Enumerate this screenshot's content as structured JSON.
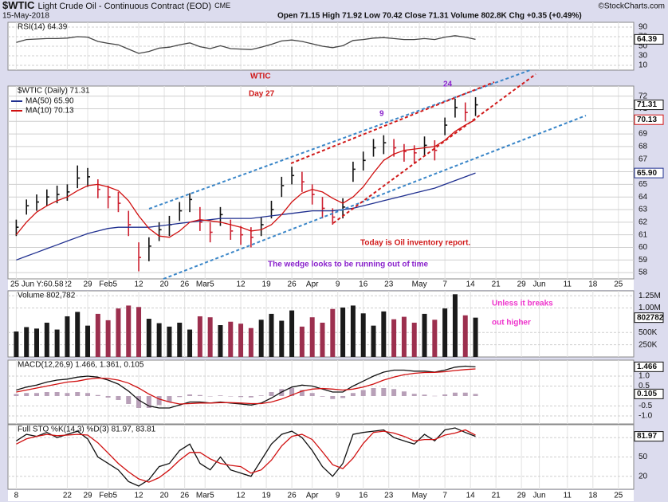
{
  "header": {
    "symbol": "$WTIC",
    "name": "Light Crude Oil - Continuous Contract (EOD)",
    "exchange": "CME",
    "date": "15-May-2018",
    "quote": "Open 71.15 High 71.92 Low 70.42 Close 71.31 Volume 802.8K Chg +0.35 (+0.49%)",
    "credit": "©StockCharts.com",
    "scroll_note": "25 Jun Y:60.58"
  },
  "annotations": {
    "wtic": "WTIC",
    "day": "Day 27",
    "count9": "9",
    "count24": "24",
    "report": "Today is Oil inventory report.",
    "wedge": "The wedge looks to be running out of time",
    "breaks1": "Unless it breaks",
    "breaks2": "out higher"
  },
  "chart_data": [
    {
      "type": "line",
      "title": "RSI(14) 64.39",
      "ylim": [
        0,
        100
      ],
      "yticks": [
        90,
        70,
        50,
        30,
        10
      ],
      "grid": true,
      "series": [
        {
          "name": "RSI(14)",
          "color": "#444444",
          "last_value_box": true,
          "values": [
            58,
            64,
            65,
            66,
            66,
            67,
            70,
            69,
            60,
            56,
            53,
            44,
            35,
            39,
            46,
            48,
            53,
            57,
            49,
            45,
            51,
            45,
            44,
            43,
            48,
            54,
            61,
            63,
            60,
            55,
            50,
            47,
            51,
            62,
            64,
            67,
            68,
            66,
            64,
            64,
            66,
            64,
            69,
            72,
            69,
            64.39
          ]
        }
      ]
    },
    {
      "type": "ohlc",
      "title": "$WTIC (Daily) 71.31",
      "ylim": [
        57.5,
        72.8
      ],
      "yticks": [
        58,
        59,
        60,
        61,
        62,
        63,
        64,
        65,
        66,
        67,
        68,
        69,
        70,
        71,
        72
      ],
      "grid": true,
      "xlim": [
        0,
        122
      ],
      "xticks": [
        {
          "value": 1,
          "label": "8"
        },
        {
          "value": 11,
          "label": "22"
        },
        {
          "value": 15,
          "label": "29"
        },
        {
          "value": 19,
          "label": "Feb5"
        },
        {
          "value": 25,
          "label": "12"
        },
        {
          "value": 30,
          "label": "20"
        },
        {
          "value": 34,
          "label": "26"
        },
        {
          "value": 38,
          "label": "Mar5"
        },
        {
          "value": 45,
          "label": "12"
        },
        {
          "value": 50,
          "label": "19"
        },
        {
          "value": 55,
          "label": "26"
        },
        {
          "value": 59,
          "label": "Apr"
        },
        {
          "value": 64,
          "label": "9"
        },
        {
          "value": 69,
          "label": "16"
        },
        {
          "value": 74,
          "label": "23"
        },
        {
          "value": 80,
          "label": "May"
        },
        {
          "value": 85,
          "label": "7"
        },
        {
          "value": 90,
          "label": "14"
        },
        {
          "value": 95,
          "label": "21"
        },
        {
          "value": 100,
          "label": "29"
        },
        {
          "value": 103.5,
          "label": "Jun"
        },
        {
          "value": 109,
          "label": "11"
        },
        {
          "value": 114,
          "label": "18"
        },
        {
          "value": 119,
          "label": "25"
        }
      ],
      "up_color": "#111111",
      "down_color": "#cc1f2f",
      "last_value_box": true,
      "high": [
        62.2,
        63.8,
        64.2,
        64.6,
        64.9,
        65.0,
        66.5,
        66.3,
        65.4,
        64.9,
        64.4,
        62.9,
        60.4,
        60.8,
        62.0,
        62.5,
        63.6,
        64.3,
        63.2,
        62.0,
        63.2,
        62.2,
        61.7,
        61.6,
        62.4,
        63.7,
        65.6,
        66.4,
        66.0,
        65.0,
        64.0,
        63.1,
        63.9,
        66.8,
        67.6,
        68.6,
        68.9,
        68.6,
        68.2,
        68.1,
        68.8,
        68.5,
        70.3,
        71.8,
        71.5,
        71.92
      ],
      "low": [
        60.9,
        62.6,
        62.9,
        63.3,
        63.5,
        63.7,
        64.7,
        64.8,
        63.9,
        63.1,
        62.8,
        60.9,
        58.1,
        58.9,
        60.5,
        60.9,
        62.1,
        62.8,
        61.3,
        60.4,
        61.7,
        60.6,
        60.2,
        60.0,
        60.9,
        62.3,
        64.0,
        65.0,
        64.4,
        63.4,
        62.3,
        61.8,
        62.3,
        65.2,
        66.1,
        67.2,
        67.4,
        67.2,
        66.8,
        66.7,
        67.3,
        66.9,
        68.9,
        70.3,
        70.0,
        70.42
      ],
      "close": [
        61.6,
        63.3,
        63.6,
        64.0,
        64.2,
        64.4,
        65.5,
        65.6,
        64.6,
        64.0,
        63.5,
        61.8,
        59.2,
        60.1,
        61.4,
        61.8,
        62.9,
        63.8,
        62.0,
        61.2,
        62.6,
        61.3,
        61.0,
        60.8,
        61.8,
        63.0,
        64.9,
        65.7,
        65.2,
        64.2,
        63.1,
        62.4,
        63.2,
        66.2,
        66.9,
        67.9,
        68.3,
        67.9,
        67.6,
        67.5,
        68.1,
        67.7,
        69.7,
        71.1,
        70.7,
        71.31
      ],
      "series": [
        {
          "name": "MA(50) 65.90",
          "color": "#1f2f8f",
          "last_value_box": true,
          "values": [
            59.0,
            59.3,
            59.6,
            59.9,
            60.2,
            60.5,
            60.8,
            61.1,
            61.3,
            61.5,
            61.6,
            61.6,
            61.6,
            61.6,
            61.7,
            61.8,
            61.9,
            62.0,
            62.1,
            62.2,
            62.3,
            62.3,
            62.3,
            62.3,
            62.4,
            62.5,
            62.6,
            62.7,
            62.8,
            62.9,
            62.9,
            62.9,
            63.0,
            63.1,
            63.3,
            63.5,
            63.7,
            63.9,
            64.1,
            64.3,
            64.5,
            64.7,
            65.0,
            65.3,
            65.6,
            65.9
          ],
          "value_labels": [
            null,
            null,
            null,
            null,
            null,
            null,
            null,
            null,
            null,
            null,
            null,
            null,
            null,
            null,
            null,
            null,
            null,
            null,
            null,
            null,
            null,
            null,
            null,
            null,
            null,
            null,
            null,
            null,
            null,
            null,
            null,
            null,
            null,
            null,
            null,
            null,
            null,
            null,
            null,
            null,
            null,
            null,
            null,
            null,
            null,
            "65.90"
          ]
        },
        {
          "name": "MA(10) 70.13",
          "color": "#d01010",
          "last_value_box": true,
          "values": [
            61.0,
            62.0,
            62.8,
            63.3,
            63.7,
            64.0,
            64.5,
            64.9,
            65.0,
            64.8,
            64.5,
            63.7,
            62.5,
            61.5,
            60.9,
            60.8,
            61.3,
            62.0,
            62.2,
            62.1,
            62.0,
            61.8,
            61.6,
            61.3,
            61.4,
            61.8,
            62.6,
            63.6,
            64.3,
            64.6,
            64.4,
            63.9,
            63.5,
            64.0,
            64.8,
            65.9,
            66.9,
            67.4,
            67.7,
            67.8,
            67.9,
            68.0,
            68.5,
            69.2,
            69.7,
            70.13
          ]
        }
      ]
    },
    {
      "type": "bar",
      "title": "Volume 802,782",
      "ylim": [
        0,
        1350000
      ],
      "yticks": [
        {
          "value": 1250000,
          "label": "1.25M"
        },
        {
          "value": 1000000,
          "label": "1.00M"
        },
        {
          "value": 500000,
          "label": "500K"
        },
        {
          "value": 250000,
          "label": "250K"
        }
      ],
      "grid": true,
      "last_value_box": true,
      "values": [
        520000,
        610000,
        580000,
        700000,
        560000,
        830000,
        920000,
        640000,
        880000,
        750000,
        990000,
        1050000,
        1020000,
        780000,
        690000,
        620000,
        700000,
        560000,
        830000,
        810000,
        650000,
        720000,
        680000,
        590000,
        760000,
        880000,
        740000,
        950000,
        620000,
        810000,
        700000,
        980000,
        1010000,
        1050000,
        890000,
        640000,
        930000,
        770000,
        820000,
        700000,
        880000,
        760000,
        990000,
        1280000,
        850000,
        802782
      ]
    },
    {
      "type": "line",
      "title": "MACD(12,26,9) 1.466, 1.361, 0.105",
      "ylim": [
        -1.4,
        1.8
      ],
      "yticks": [
        {
          "value": 1,
          "label": "1.0"
        },
        {
          "value": 0.5,
          "label": "0.5"
        },
        {
          "value": -0.5,
          "label": "-0.5"
        },
        {
          "value": -1,
          "label": "-1.0"
        }
      ],
      "grid": true,
      "series": [
        {
          "name": "Histogram",
          "style": "bar",
          "color": "#b8a0b8",
          "last_value_box": true,
          "values": [
            0.1,
            0.15,
            0.15,
            0.2,
            0.2,
            0.15,
            0.2,
            0.15,
            0.05,
            -0.08,
            -0.2,
            -0.4,
            -0.6,
            -0.6,
            -0.45,
            -0.3,
            -0.05,
            0.08,
            0.05,
            0,
            0.03,
            -0.02,
            -0.05,
            -0.07,
            0.03,
            0.2,
            0.35,
            0.4,
            0.3,
            0.15,
            -0.03,
            -0.15,
            -0.1,
            0.15,
            0.3,
            0.4,
            0.4,
            0.35,
            0.23,
            0.11,
            0.07,
            0.01,
            0.08,
            0.17,
            0.17,
            0.105
          ]
        },
        {
          "name": "MACD",
          "color": "#111111",
          "last_value_box": true,
          "values": [
            0.3,
            0.45,
            0.55,
            0.7,
            0.8,
            0.85,
            0.95,
            1.0,
            0.95,
            0.8,
            0.6,
            0.25,
            -0.2,
            -0.5,
            -0.6,
            -0.6,
            -0.45,
            -0.3,
            -0.3,
            -0.35,
            -0.3,
            -0.35,
            -0.4,
            -0.45,
            -0.35,
            -0.1,
            0.2,
            0.45,
            0.55,
            0.5,
            0.35,
            0.2,
            0.2,
            0.5,
            0.75,
            1.0,
            1.2,
            1.3,
            1.3,
            1.25,
            1.25,
            1.2,
            1.3,
            1.45,
            1.5,
            1.466
          ]
        },
        {
          "name": "Signal",
          "color": "#d01010",
          "values": [
            0.2,
            0.3,
            0.4,
            0.5,
            0.6,
            0.7,
            0.75,
            0.85,
            0.9,
            0.88,
            0.8,
            0.65,
            0.4,
            0.1,
            -0.15,
            -0.3,
            -0.4,
            -0.38,
            -0.35,
            -0.35,
            -0.33,
            -0.33,
            -0.35,
            -0.38,
            -0.38,
            -0.3,
            -0.15,
            0.05,
            0.25,
            0.35,
            0.38,
            0.35,
            0.3,
            0.35,
            0.45,
            0.6,
            0.8,
            0.95,
            1.07,
            1.14,
            1.18,
            1.19,
            1.22,
            1.28,
            1.33,
            1.361
          ]
        }
      ]
    },
    {
      "type": "line",
      "title": "Full STO %K(14,3) %D(3) 81.97, 83.81",
      "ylim": [
        0,
        100
      ],
      "yticks": [
        80,
        50,
        20
      ],
      "grid": true,
      "series": [
        {
          "name": "%K",
          "color": "#111111",
          "last_value_box": true,
          "values": [
            75,
            85,
            82,
            88,
            80,
            85,
            90,
            78,
            50,
            40,
            30,
            12,
            5,
            15,
            35,
            40,
            60,
            70,
            40,
            30,
            50,
            30,
            25,
            20,
            45,
            70,
            85,
            90,
            80,
            60,
            35,
            20,
            40,
            85,
            88,
            90,
            92,
            80,
            75,
            70,
            85,
            75,
            92,
            95,
            88,
            81.97
          ]
        },
        {
          "name": "%D",
          "color": "#d01010",
          "values": [
            70,
            78,
            82,
            85,
            83,
            84,
            85,
            84,
            72,
            56,
            40,
            27,
            16,
            11,
            18,
            30,
            45,
            57,
            57,
            47,
            40,
            37,
            35,
            25,
            30,
            45,
            67,
            82,
            85,
            77,
            58,
            38,
            32,
            48,
            71,
            88,
            90,
            87,
            82,
            75,
            77,
            77,
            84,
            87,
            92,
            83.81
          ]
        }
      ]
    }
  ]
}
